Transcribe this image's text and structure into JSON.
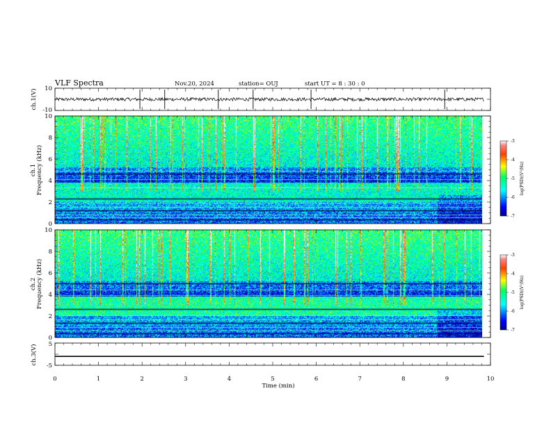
{
  "header": {
    "title": "VLF Spectra",
    "date": "Nov.20, 2024",
    "station": "station= OUJ",
    "start_ut": "start  UT =   8  : 30 : 0"
  },
  "chart_data": [
    {
      "id": "ch1_waveform",
      "type": "line",
      "ylabel": "ch.1(V)",
      "ylim": [
        -10,
        10
      ],
      "yticks": [
        "10",
        "-10"
      ],
      "xlim": [
        0,
        10
      ],
      "baseline": 0,
      "noise_amplitude": 1.5,
      "data_end": 9.85,
      "spike_times": [
        1.95,
        2.52,
        3.75,
        4.55,
        5.88,
        8.95
      ]
    },
    {
      "id": "ch1_spectrogram",
      "type": "heatmap",
      "ylabel_line1": "ch.1",
      "ylabel_line2": "Frequency (kHz)",
      "ylim": [
        0,
        10
      ],
      "yticks": [
        "0",
        "2",
        "4",
        "6",
        "8",
        "10"
      ],
      "xlim": [
        0,
        10
      ],
      "data_end": 9.85,
      "colorbar": {
        "label": "log(PSD)(V²/Hz)",
        "range": [
          -7,
          -3
        ],
        "ticks": [
          "-3",
          "-4",
          "-5",
          "-6",
          "-7"
        ]
      },
      "tonal_lines_khz": [
        0.3,
        0.5,
        0.8,
        1.2,
        1.5,
        1.9,
        2.3,
        3.3,
        4.1,
        4.6,
        4.85
      ]
    },
    {
      "id": "ch2_spectrogram",
      "type": "heatmap",
      "ylabel_line1": "ch.2",
      "ylabel_line2": "Frequency (kHz)",
      "ylim": [
        0,
        10
      ],
      "yticks": [
        "0",
        "2",
        "4",
        "6",
        "8",
        "10"
      ],
      "xlim": [
        0,
        10
      ],
      "data_end": 9.85,
      "colorbar": {
        "label": "log(PSD)(V²/Hz)",
        "range": [
          -7,
          -3
        ],
        "ticks": [
          "-3",
          "-4",
          "-5",
          "-6",
          "-7"
        ]
      },
      "tonal_lines_khz": [
        0.3,
        0.6,
        0.9,
        1.3,
        1.6,
        2.0,
        2.6,
        3.9,
        4.4,
        5.0
      ]
    },
    {
      "id": "ch3_waveform",
      "type": "line",
      "ylabel": "ch.3(V)",
      "ylim": [
        -5,
        5
      ],
      "yticks": [
        "5",
        "-5"
      ],
      "xlim": [
        0,
        10
      ],
      "constant_value": -1,
      "data_end": 9.85,
      "xlabel": "Time  (min)",
      "xticks": [
        "0",
        "1",
        "2",
        "3",
        "4",
        "5",
        "6",
        "7",
        "8",
        "9",
        "10"
      ]
    }
  ]
}
